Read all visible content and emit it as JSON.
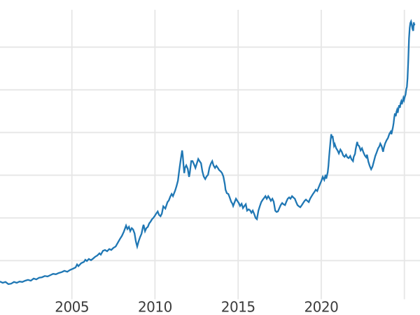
{
  "chart_data": {
    "type": "line",
    "title": "",
    "x_tick_labels": [
      "2005",
      "2010",
      "2015",
      "2020"
    ],
    "x_tick_years": [
      2005,
      2010,
      2015,
      2020,
      2025
    ],
    "x_axis_range_years": [
      2000.67,
      2025.95
    ],
    "y_axis_labels_visible": false,
    "y_gridline_values": [
      500,
      1000,
      1500,
      2000,
      2500,
      3000
    ],
    "y_axis_range_values": [
      95,
      3435
    ],
    "grid": true,
    "legend": false,
    "line_color": "#1f77b4",
    "gridline_color": "#e6e6e6",
    "tick_label_color": "#3c3c3c",
    "background_color": "#ffffff",
    "series": [
      {
        "name": "series-1",
        "points": [
          [
            2000.67,
            255
          ],
          [
            2000.84,
            240
          ],
          [
            2001.01,
            250
          ],
          [
            2001.18,
            225
          ],
          [
            2001.35,
            230
          ],
          [
            2001.52,
            250
          ],
          [
            2001.68,
            240
          ],
          [
            2001.85,
            255
          ],
          [
            2002.02,
            250
          ],
          [
            2002.19,
            265
          ],
          [
            2002.36,
            275
          ],
          [
            2002.53,
            265
          ],
          [
            2002.7,
            290
          ],
          [
            2002.86,
            280
          ],
          [
            2003.03,
            300
          ],
          [
            2003.2,
            305
          ],
          [
            2003.37,
            320
          ],
          [
            2003.54,
            315
          ],
          [
            2003.71,
            330
          ],
          [
            2003.87,
            345
          ],
          [
            2004.04,
            340
          ],
          [
            2004.21,
            355
          ],
          [
            2004.38,
            365
          ],
          [
            2004.55,
            380
          ],
          [
            2004.72,
            370
          ],
          [
            2004.89,
            390
          ],
          [
            2005.06,
            405
          ],
          [
            2005.22,
            420
          ],
          [
            2005.31,
            455
          ],
          [
            2005.39,
            435
          ],
          [
            2005.56,
            470
          ],
          [
            2005.73,
            485
          ],
          [
            2005.81,
            510
          ],
          [
            2005.9,
            495
          ],
          [
            2006.02,
            520
          ],
          [
            2006.15,
            505
          ],
          [
            2006.28,
            525
          ],
          [
            2006.4,
            545
          ],
          [
            2006.53,
            560
          ],
          [
            2006.66,
            585
          ],
          [
            2006.74,
            570
          ],
          [
            2006.87,
            615
          ],
          [
            2006.99,
            625
          ],
          [
            2007.12,
            610
          ],
          [
            2007.25,
            635
          ],
          [
            2007.37,
            625
          ],
          [
            2007.5,
            650
          ],
          [
            2007.63,
            665
          ],
          [
            2007.75,
            705
          ],
          [
            2007.88,
            750
          ],
          [
            2008.01,
            790
          ],
          [
            2008.13,
            840
          ],
          [
            2008.26,
            910
          ],
          [
            2008.34,
            870
          ],
          [
            2008.43,
            895
          ],
          [
            2008.51,
            845
          ],
          [
            2008.6,
            880
          ],
          [
            2008.68,
            865
          ],
          [
            2008.77,
            820
          ],
          [
            2008.85,
            725
          ],
          [
            2008.93,
            665
          ],
          [
            2009.02,
            730
          ],
          [
            2009.1,
            775
          ],
          [
            2009.19,
            815
          ],
          [
            2009.27,
            890
          ],
          [
            2009.31,
            920
          ],
          [
            2009.4,
            845
          ],
          [
            2009.48,
            880
          ],
          [
            2009.57,
            895
          ],
          [
            2009.65,
            935
          ],
          [
            2009.73,
            955
          ],
          [
            2009.82,
            985
          ],
          [
            2009.9,
            1000
          ],
          [
            2009.99,
            1025
          ],
          [
            2010.07,
            1050
          ],
          [
            2010.16,
            1075
          ],
          [
            2010.24,
            1035
          ],
          [
            2010.33,
            1020
          ],
          [
            2010.41,
            1050
          ],
          [
            2010.5,
            1135
          ],
          [
            2010.62,
            1110
          ],
          [
            2010.75,
            1185
          ],
          [
            2010.83,
            1205
          ],
          [
            2010.92,
            1250
          ],
          [
            2011.0,
            1280
          ],
          [
            2011.08,
            1255
          ],
          [
            2011.21,
            1320
          ],
          [
            2011.29,
            1370
          ],
          [
            2011.38,
            1435
          ],
          [
            2011.46,
            1560
          ],
          [
            2011.55,
            1690
          ],
          [
            2011.63,
            1790
          ],
          [
            2011.67,
            1730
          ],
          [
            2011.71,
            1625
          ],
          [
            2011.76,
            1525
          ],
          [
            2011.8,
            1585
          ],
          [
            2011.88,
            1615
          ],
          [
            2011.97,
            1575
          ],
          [
            2012.05,
            1480
          ],
          [
            2012.09,
            1525
          ],
          [
            2012.18,
            1665
          ],
          [
            2012.26,
            1665
          ],
          [
            2012.35,
            1625
          ],
          [
            2012.43,
            1585
          ],
          [
            2012.51,
            1635
          ],
          [
            2012.6,
            1690
          ],
          [
            2012.68,
            1665
          ],
          [
            2012.77,
            1640
          ],
          [
            2012.85,
            1545
          ],
          [
            2012.93,
            1485
          ],
          [
            2013.02,
            1455
          ],
          [
            2013.1,
            1485
          ],
          [
            2013.19,
            1505
          ],
          [
            2013.27,
            1585
          ],
          [
            2013.36,
            1635
          ],
          [
            2013.44,
            1665
          ],
          [
            2013.52,
            1615
          ],
          [
            2013.61,
            1585
          ],
          [
            2013.69,
            1610
          ],
          [
            2013.78,
            1585
          ],
          [
            2013.86,
            1560
          ],
          [
            2013.95,
            1545
          ],
          [
            2014.03,
            1525
          ],
          [
            2014.11,
            1485
          ],
          [
            2014.2,
            1395
          ],
          [
            2014.24,
            1330
          ],
          [
            2014.32,
            1290
          ],
          [
            2014.41,
            1280
          ],
          [
            2014.49,
            1240
          ],
          [
            2014.58,
            1190
          ],
          [
            2014.66,
            1165
          ],
          [
            2014.7,
            1140
          ],
          [
            2014.79,
            1185
          ],
          [
            2014.87,
            1225
          ],
          [
            2014.95,
            1200
          ],
          [
            2015.04,
            1175
          ],
          [
            2015.12,
            1140
          ],
          [
            2015.21,
            1165
          ],
          [
            2015.29,
            1115
          ],
          [
            2015.38,
            1140
          ],
          [
            2015.46,
            1160
          ],
          [
            2015.54,
            1085
          ],
          [
            2015.63,
            1100
          ],
          [
            2015.71,
            1090
          ],
          [
            2015.8,
            1060
          ],
          [
            2015.88,
            1085
          ],
          [
            2015.97,
            1045
          ],
          [
            2016.05,
            1000
          ],
          [
            2016.13,
            985
          ],
          [
            2016.22,
            1085
          ],
          [
            2016.3,
            1135
          ],
          [
            2016.39,
            1185
          ],
          [
            2016.47,
            1210
          ],
          [
            2016.55,
            1230
          ],
          [
            2016.64,
            1255
          ],
          [
            2016.72,
            1225
          ],
          [
            2016.81,
            1255
          ],
          [
            2016.89,
            1230
          ],
          [
            2016.97,
            1200
          ],
          [
            2017.06,
            1225
          ],
          [
            2017.14,
            1190
          ],
          [
            2017.23,
            1085
          ],
          [
            2017.31,
            1070
          ],
          [
            2017.39,
            1075
          ],
          [
            2017.48,
            1115
          ],
          [
            2017.56,
            1150
          ],
          [
            2017.65,
            1175
          ],
          [
            2017.73,
            1160
          ],
          [
            2017.82,
            1150
          ],
          [
            2017.9,
            1190
          ],
          [
            2017.98,
            1225
          ],
          [
            2018.07,
            1240
          ],
          [
            2018.15,
            1225
          ],
          [
            2018.24,
            1255
          ],
          [
            2018.32,
            1240
          ],
          [
            2018.41,
            1225
          ],
          [
            2018.49,
            1185
          ],
          [
            2018.57,
            1150
          ],
          [
            2018.66,
            1135
          ],
          [
            2018.74,
            1125
          ],
          [
            2018.83,
            1150
          ],
          [
            2018.91,
            1175
          ],
          [
            2019.0,
            1200
          ],
          [
            2019.08,
            1215
          ],
          [
            2019.16,
            1200
          ],
          [
            2019.25,
            1185
          ],
          [
            2019.33,
            1225
          ],
          [
            2019.42,
            1255
          ],
          [
            2019.5,
            1280
          ],
          [
            2019.59,
            1305
          ],
          [
            2019.67,
            1330
          ],
          [
            2019.76,
            1315
          ],
          [
            2019.84,
            1355
          ],
          [
            2019.92,
            1395
          ],
          [
            2020.01,
            1435
          ],
          [
            2020.09,
            1480
          ],
          [
            2020.18,
            1445
          ],
          [
            2020.26,
            1505
          ],
          [
            2020.3,
            1460
          ],
          [
            2020.39,
            1535
          ],
          [
            2020.43,
            1610
          ],
          [
            2020.47,
            1710
          ],
          [
            2020.51,
            1805
          ],
          [
            2020.56,
            1905
          ],
          [
            2020.6,
            1980
          ],
          [
            2020.64,
            1935
          ],
          [
            2020.68,
            1960
          ],
          [
            2020.73,
            1895
          ],
          [
            2020.77,
            1845
          ],
          [
            2020.81,
            1865
          ],
          [
            2020.9,
            1815
          ],
          [
            2020.98,
            1790
          ],
          [
            2021.06,
            1755
          ],
          [
            2021.15,
            1800
          ],
          [
            2021.23,
            1775
          ],
          [
            2021.32,
            1730
          ],
          [
            2021.4,
            1715
          ],
          [
            2021.49,
            1740
          ],
          [
            2021.57,
            1710
          ],
          [
            2021.65,
            1700
          ],
          [
            2021.74,
            1725
          ],
          [
            2021.82,
            1685
          ],
          [
            2021.91,
            1665
          ],
          [
            2021.95,
            1715
          ],
          [
            2022.03,
            1750
          ],
          [
            2022.07,
            1805
          ],
          [
            2022.16,
            1890
          ],
          [
            2022.2,
            1855
          ],
          [
            2022.28,
            1840
          ],
          [
            2022.37,
            1790
          ],
          [
            2022.45,
            1815
          ],
          [
            2022.54,
            1765
          ],
          [
            2022.62,
            1730
          ],
          [
            2022.7,
            1710
          ],
          [
            2022.75,
            1740
          ],
          [
            2022.83,
            1660
          ],
          [
            2022.91,
            1610
          ],
          [
            2023.0,
            1570
          ],
          [
            2023.08,
            1600
          ],
          [
            2023.17,
            1665
          ],
          [
            2023.25,
            1725
          ],
          [
            2023.33,
            1765
          ],
          [
            2023.42,
            1815
          ],
          [
            2023.5,
            1840
          ],
          [
            2023.55,
            1870
          ],
          [
            2023.63,
            1840
          ],
          [
            2023.72,
            1775
          ],
          [
            2023.76,
            1815
          ],
          [
            2023.84,
            1870
          ],
          [
            2023.93,
            1910
          ],
          [
            2024.01,
            1935
          ],
          [
            2024.1,
            1985
          ],
          [
            2024.18,
            2010
          ],
          [
            2024.22,
            1980
          ],
          [
            2024.31,
            2060
          ],
          [
            2024.35,
            2110
          ],
          [
            2024.39,
            2175
          ],
          [
            2024.43,
            2225
          ],
          [
            2024.48,
            2190
          ],
          [
            2024.52,
            2240
          ],
          [
            2024.56,
            2265
          ],
          [
            2024.6,
            2230
          ],
          [
            2024.64,
            2280
          ],
          [
            2024.69,
            2320
          ],
          [
            2024.73,
            2290
          ],
          [
            2024.77,
            2340
          ],
          [
            2024.81,
            2365
          ],
          [
            2024.85,
            2330
          ],
          [
            2024.9,
            2370
          ],
          [
            2024.94,
            2405
          ],
          [
            2024.98,
            2380
          ],
          [
            2025.02,
            2415
          ],
          [
            2025.07,
            2445
          ],
          [
            2025.11,
            2505
          ],
          [
            2025.15,
            2535
          ],
          [
            2025.19,
            2635
          ],
          [
            2025.23,
            2830
          ],
          [
            2025.28,
            3100
          ],
          [
            2025.32,
            3225
          ],
          [
            2025.36,
            3280
          ],
          [
            2025.4,
            3300
          ],
          [
            2025.44,
            3265
          ],
          [
            2025.49,
            3215
          ],
          [
            2025.53,
            3190
          ],
          [
            2025.55,
            3250
          ],
          [
            2025.57,
            3290
          ],
          [
            2025.59,
            3255
          ],
          [
            2025.61,
            3275
          ]
        ]
      }
    ]
  }
}
